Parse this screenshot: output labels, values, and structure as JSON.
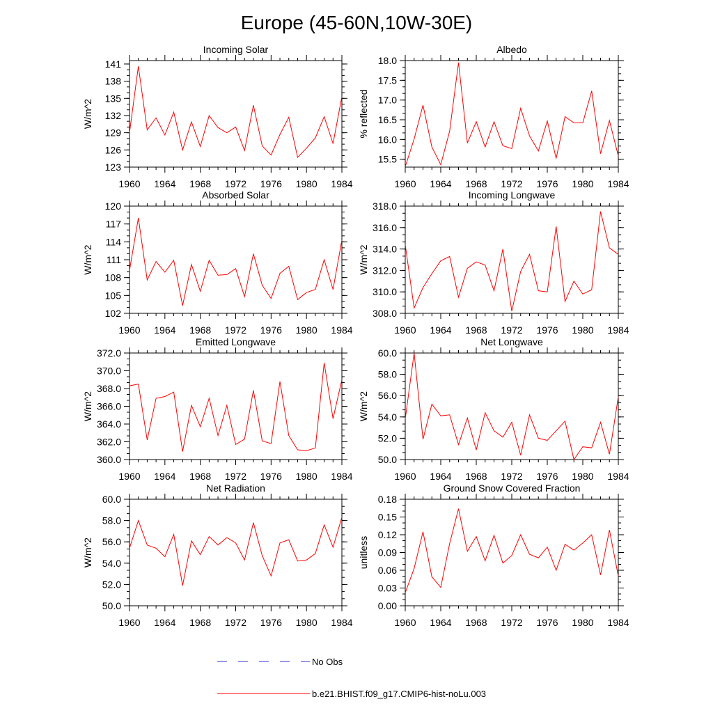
{
  "figure": {
    "title": "Europe (45-60N,10W-30E)"
  },
  "legend": {
    "obs_label": "No Obs",
    "obs_color": "#3333cc",
    "model_label": "b.e21.BHIST.f09_g17.CMIP6-hist-noLu.003",
    "model_color": "#ff0000"
  },
  "chart_data": [
    {
      "type": "line",
      "title": "Incoming Solar",
      "xlabel": "",
      "ylabel": "W/m^2",
      "xlim": [
        1960,
        1984
      ],
      "ylim": [
        123,
        141.6
      ],
      "xticks": [
        "1960",
        "1964",
        "1968",
        "1972",
        "1976",
        "1980",
        "1984"
      ],
      "yticks": [
        "123",
        "126",
        "129",
        "132",
        "135",
        "138",
        "141"
      ],
      "x": [
        1960,
        1961,
        1962,
        1963,
        1964,
        1965,
        1966,
        1967,
        1968,
        1969,
        1970,
        1971,
        1972,
        1973,
        1974,
        1975,
        1976,
        1977,
        1978,
        1979,
        1980,
        1981,
        1982,
        1983,
        1984
      ],
      "series": [
        {
          "name": "b.e21.BHIST.f09_g17.CMIP6-hist-noLu.003",
          "color": "#ff0000",
          "values": [
            129.0,
            140.6,
            129.5,
            131.6,
            128.6,
            132.6,
            126.0,
            130.9,
            126.6,
            132.0,
            129.9,
            129.0,
            130.0,
            125.9,
            133.8,
            126.7,
            125.1,
            128.7,
            131.7,
            124.7,
            126.3,
            128.1,
            131.8,
            127.1,
            135.3
          ]
        }
      ]
    },
    {
      "type": "line",
      "title": "Albedo",
      "xlabel": "",
      "ylabel": "% reflected",
      "xlim": [
        1960,
        1984
      ],
      "ylim": [
        15.3,
        18.0
      ],
      "xticks": [
        "1960",
        "1964",
        "1968",
        "1972",
        "1976",
        "1980",
        "1984"
      ],
      "yticks": [
        "15.5",
        "16.0",
        "16.5",
        "17.0",
        "17.5",
        "18.0"
      ],
      "x": [
        1960,
        1961,
        1962,
        1963,
        1964,
        1965,
        1966,
        1967,
        1968,
        1969,
        1970,
        1971,
        1972,
        1973,
        1974,
        1975,
        1976,
        1977,
        1978,
        1979,
        1980,
        1981,
        1982,
        1983,
        1984
      ],
      "series": [
        {
          "name": "b.e21.BHIST.f09_g17.CMIP6-hist-noLu.003",
          "color": "#ff0000",
          "values": [
            15.31,
            16.01,
            16.87,
            15.81,
            15.36,
            16.21,
            17.95,
            15.91,
            16.45,
            15.81,
            16.45,
            15.84,
            15.77,
            16.79,
            16.09,
            15.71,
            16.47,
            15.52,
            16.58,
            16.42,
            16.42,
            17.23,
            15.64,
            16.48,
            15.58
          ]
        }
      ]
    },
    {
      "type": "line",
      "title": "Absorbed Solar",
      "xlabel": "",
      "ylabel": "W/m^2",
      "xlim": [
        1960,
        1984
      ],
      "ylim": [
        102,
        120
      ],
      "xticks": [
        "1960",
        "1964",
        "1968",
        "1972",
        "1976",
        "1980",
        "1984"
      ],
      "yticks": [
        "102",
        "105",
        "108",
        "111",
        "114",
        "117",
        "120"
      ],
      "x": [
        1960,
        1961,
        1962,
        1963,
        1964,
        1965,
        1966,
        1967,
        1968,
        1969,
        1970,
        1971,
        1972,
        1973,
        1974,
        1975,
        1976,
        1977,
        1978,
        1979,
        1980,
        1981,
        1982,
        1983,
        1984
      ],
      "series": [
        {
          "name": "b.e21.BHIST.f09_g17.CMIP6-hist-noLu.003",
          "color": "#ff0000",
          "values": [
            109.2,
            118.0,
            107.6,
            110.7,
            108.9,
            110.9,
            103.3,
            110.2,
            105.7,
            110.9,
            108.4,
            108.5,
            109.5,
            104.8,
            112.0,
            106.7,
            104.5,
            108.7,
            109.9,
            104.3,
            105.5,
            106.0,
            111.0,
            106.0,
            114.3
          ]
        }
      ]
    },
    {
      "type": "line",
      "title": "Incoming Longwave",
      "xlabel": "",
      "ylabel": "W/m^2",
      "xlim": [
        1960,
        1984
      ],
      "ylim": [
        308.0,
        318.0
      ],
      "xticks": [
        "1960",
        "1964",
        "1968",
        "1972",
        "1976",
        "1980",
        "1984"
      ],
      "yticks": [
        "308.0",
        "310.0",
        "312.0",
        "314.0",
        "316.0",
        "318.0"
      ],
      "x": [
        1960,
        1961,
        1962,
        1963,
        1964,
        1965,
        1966,
        1967,
        1968,
        1969,
        1970,
        1971,
        1972,
        1973,
        1974,
        1975,
        1976,
        1977,
        1978,
        1979,
        1980,
        1981,
        1982,
        1983,
        1984
      ],
      "series": [
        {
          "name": "b.e21.BHIST.f09_g17.CMIP6-hist-noLu.003",
          "color": "#ff0000",
          "values": [
            314.4,
            308.5,
            310.4,
            311.7,
            312.9,
            313.3,
            309.5,
            312.2,
            312.8,
            312.5,
            310.1,
            314.0,
            308.2,
            311.9,
            313.5,
            310.1,
            310.0,
            316.1,
            309.1,
            311.0,
            309.8,
            310.2,
            317.5,
            314.1,
            313.5
          ]
        }
      ]
    },
    {
      "type": "line",
      "title": "Emitted Longwave",
      "xlabel": "",
      "ylabel": "W/m^2",
      "xlim": [
        1960,
        1984
      ],
      "ylim": [
        360.0,
        372.0
      ],
      "xticks": [
        "1960",
        "1964",
        "1968",
        "1972",
        "1976",
        "1980",
        "1984"
      ],
      "yticks": [
        "360.0",
        "362.0",
        "364.0",
        "366.0",
        "368.0",
        "370.0",
        "372.0"
      ],
      "x": [
        1960,
        1961,
        1962,
        1963,
        1964,
        1965,
        1966,
        1967,
        1968,
        1969,
        1970,
        1971,
        1972,
        1973,
        1974,
        1975,
        1976,
        1977,
        1978,
        1979,
        1980,
        1981,
        1982,
        1983,
        1984
      ],
      "series": [
        {
          "name": "b.e21.BHIST.f09_g17.CMIP6-hist-noLu.003",
          "color": "#ff0000",
          "values": [
            368.3,
            368.5,
            362.2,
            366.9,
            367.1,
            367.6,
            360.9,
            366.1,
            363.7,
            366.9,
            362.7,
            366.1,
            361.7,
            362.3,
            367.8,
            362.1,
            361.8,
            368.8,
            362.7,
            361.1,
            361.0,
            361.3,
            370.9,
            364.6,
            369.0
          ]
        }
      ]
    },
    {
      "type": "line",
      "title": "Net Longwave",
      "xlabel": "",
      "ylabel": "W/m^2",
      "xlim": [
        1960,
        1984
      ],
      "ylim": [
        50.0,
        60.0
      ],
      "xticks": [
        "1960",
        "1964",
        "1968",
        "1972",
        "1976",
        "1980",
        "1984"
      ],
      "yticks": [
        "50.0",
        "52.0",
        "54.0",
        "56.0",
        "58.0",
        "60.0"
      ],
      "x": [
        1960,
        1961,
        1962,
        1963,
        1964,
        1965,
        1966,
        1967,
        1968,
        1969,
        1970,
        1971,
        1972,
        1973,
        1974,
        1975,
        1976,
        1977,
        1978,
        1979,
        1980,
        1981,
        1982,
        1983,
        1984
      ],
      "series": [
        {
          "name": "b.e21.BHIST.f09_g17.CMIP6-hist-noLu.003",
          "color": "#ff0000",
          "values": [
            53.8,
            60.0,
            51.9,
            55.2,
            54.1,
            54.2,
            51.4,
            53.9,
            50.9,
            54.4,
            52.7,
            52.1,
            53.5,
            50.4,
            54.2,
            52.0,
            51.8,
            52.7,
            53.6,
            50.0,
            51.2,
            51.1,
            53.5,
            50.5,
            55.9
          ]
        }
      ]
    },
    {
      "type": "line",
      "title": "Net Radiation",
      "xlabel": "",
      "ylabel": "W/m^2",
      "xlim": [
        1960,
        1984
      ],
      "ylim": [
        50.0,
        60.0
      ],
      "xticks": [
        "1960",
        "1964",
        "1968",
        "1972",
        "1976",
        "1980",
        "1984"
      ],
      "yticks": [
        "50.0",
        "52.0",
        "54.0",
        "56.0",
        "58.0",
        "60.0"
      ],
      "x": [
        1960,
        1961,
        1962,
        1963,
        1964,
        1965,
        1966,
        1967,
        1968,
        1969,
        1970,
        1971,
        1972,
        1973,
        1974,
        1975,
        1976,
        1977,
        1978,
        1979,
        1980,
        1981,
        1982,
        1983,
        1984
      ],
      "series": [
        {
          "name": "b.e21.BHIST.f09_g17.CMIP6-hist-noLu.003",
          "color": "#ff0000",
          "values": [
            55.4,
            58.0,
            55.7,
            55.4,
            54.6,
            56.7,
            51.9,
            56.1,
            54.8,
            56.5,
            55.7,
            56.4,
            55.9,
            54.3,
            57.8,
            54.7,
            52.8,
            55.9,
            56.2,
            54.2,
            54.3,
            54.9,
            57.6,
            55.5,
            58.3
          ]
        }
      ]
    },
    {
      "type": "line",
      "title": "Ground Snow Covered Fraction",
      "xlabel": "",
      "ylabel": "unitless",
      "xlim": [
        1960,
        1984
      ],
      "ylim": [
        0.0,
        0.18
      ],
      "xticks": [
        "1960",
        "1964",
        "1968",
        "1972",
        "1976",
        "1980",
        "1984"
      ],
      "yticks": [
        "0.00",
        "0.03",
        "0.06",
        "0.09",
        "0.12",
        "0.15",
        "0.18"
      ],
      "x": [
        1960,
        1961,
        1962,
        1963,
        1964,
        1965,
        1966,
        1967,
        1968,
        1969,
        1970,
        1971,
        1972,
        1973,
        1974,
        1975,
        1976,
        1977,
        1978,
        1979,
        1980,
        1981,
        1982,
        1983,
        1984
      ],
      "series": [
        {
          "name": "b.e21.BHIST.f09_g17.CMIP6-hist-noLu.003",
          "color": "#ff0000",
          "values": [
            0.022,
            0.063,
            0.125,
            0.049,
            0.031,
            0.105,
            0.164,
            0.092,
            0.117,
            0.076,
            0.119,
            0.072,
            0.085,
            0.12,
            0.087,
            0.081,
            0.099,
            0.06,
            0.104,
            0.094,
            0.106,
            0.12,
            0.052,
            0.128,
            0.05
          ]
        }
      ]
    }
  ]
}
